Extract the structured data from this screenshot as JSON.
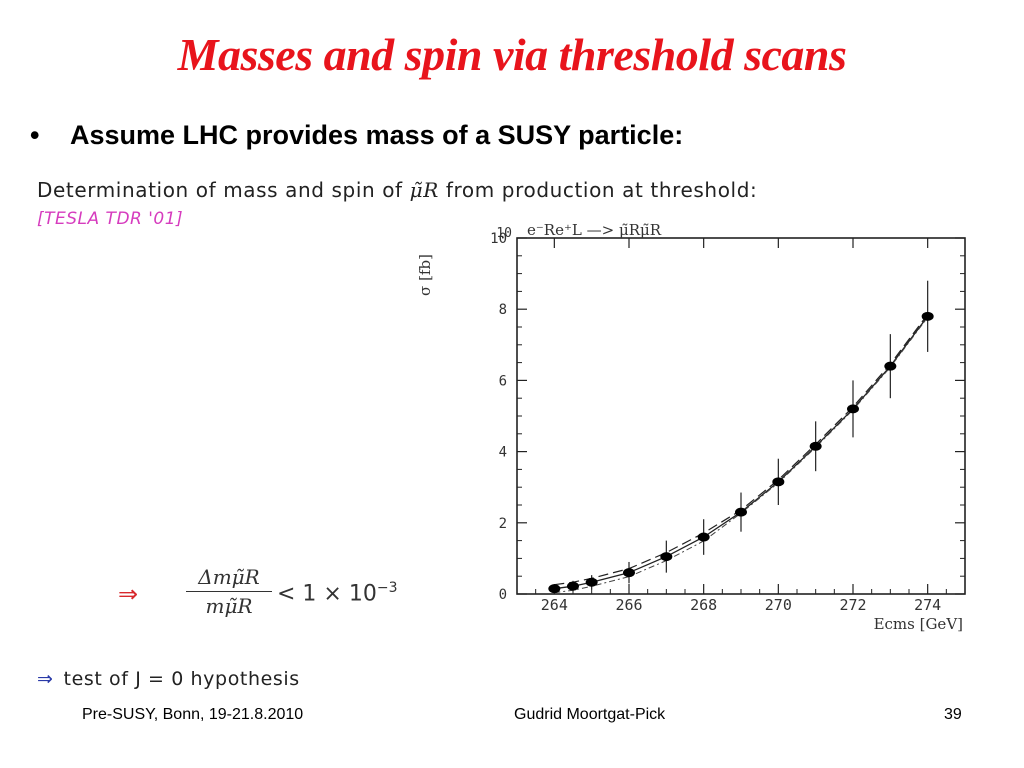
{
  "slide": {
    "title": "Masses and spin via threshold scans",
    "bullet": "Assume LHC provides mass of  a SUSY particle:",
    "heading": "Determination of mass and spin of",
    "heading_symbol": "μ̃R",
    "heading_end": "from production at threshold:",
    "reference": "[TESLA TDR '01]",
    "arrow": "⇒",
    "frac_num": "Δmμ̃R",
    "frac_den": "mμ̃R",
    "precision": "< 1 × 10",
    "precision_exp": "−3",
    "test_text": "test of J = 0 hypothesis",
    "footer_left": "Pre-SUSY, Bonn, 19-21.8.2010",
    "footer_center": "Gudrid Moortgat-Pick",
    "footer_right": "39"
  },
  "chart_data": {
    "type": "scatter",
    "title": "e⁻Re⁺L  —>  μ̃Rμ̃R",
    "xlabel": "Ecms   [GeV]",
    "ylabel": "σ  [fb]",
    "xlim": [
      263,
      275
    ],
    "ylim": [
      0,
      10
    ],
    "xticks": [
      264,
      266,
      268,
      270,
      272,
      274
    ],
    "yticks": [
      0,
      2,
      4,
      6,
      8,
      10
    ],
    "grid": false,
    "series": [
      {
        "x": [
          264,
          264.5,
          265,
          266,
          267,
          268,
          269,
          270,
          271,
          272,
          273,
          274
        ],
        "y": [
          0.15,
          0.22,
          0.33,
          0.6,
          1.05,
          1.6,
          2.3,
          3.15,
          4.15,
          5.2,
          6.4,
          7.8
        ],
        "err": [
          0.12,
          0.15,
          0.2,
          0.3,
          0.45,
          0.5,
          0.55,
          0.65,
          0.7,
          0.8,
          0.9,
          1.0
        ]
      }
    ]
  }
}
